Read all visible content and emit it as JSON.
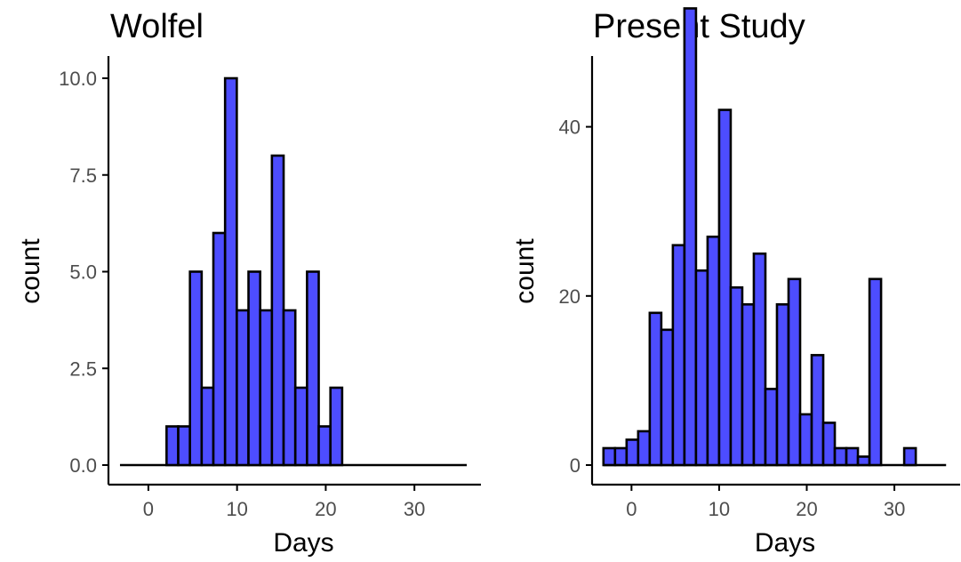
{
  "colors": {
    "bar_fill": "#4d4dff",
    "bar_outline": "#000000",
    "tick_text": "#4d4d4d"
  },
  "chart_data": [
    {
      "type": "bar",
      "title": "Wolfel",
      "xlabel": "Days",
      "ylabel": "count",
      "x_ticks": [
        0,
        10,
        20,
        30
      ],
      "y_ticks": [
        0,
        2.5,
        5,
        7.5,
        10
      ],
      "y_tick_labels": [
        "0.0",
        "2.5",
        "5.0",
        "7.5",
        "10.0"
      ],
      "xlim": [
        -4.5,
        37.5
      ],
      "ylim": [
        0,
        10.6
      ],
      "bin_width": 1.32,
      "bin_range": [
        -3.2,
        35.9
      ],
      "bin_starts": [
        2.05,
        3.37,
        4.69,
        6.01,
        7.33,
        8.65,
        9.97,
        11.29,
        12.61,
        13.93,
        15.25,
        16.57,
        17.89,
        19.21,
        20.53
      ],
      "values": [
        1,
        1,
        5,
        2,
        6,
        10,
        4,
        5,
        4,
        8,
        4,
        2,
        5,
        1,
        2
      ],
      "grid": false,
      "legend": "none"
    },
    {
      "type": "bar",
      "title": "Present Study",
      "xlabel": "Days",
      "ylabel": "count",
      "x_ticks": [
        0,
        10,
        20,
        30
      ],
      "y_ticks": [
        0,
        20,
        40
      ],
      "y_tick_labels": [
        "0",
        "20",
        "40"
      ],
      "xlim": [
        -4.5,
        37.5
      ],
      "ylim": [
        0,
        56
      ],
      "bin_width": 1.32,
      "bin_range": [
        -3.2,
        35.9
      ],
      "bin_starts": [
        -3.2,
        -1.88,
        -0.56,
        0.76,
        2.08,
        3.4,
        4.72,
        6.04,
        7.36,
        8.68,
        10.0,
        11.32,
        12.64,
        13.96,
        15.28,
        16.6,
        17.92,
        19.24,
        20.56,
        21.88,
        23.2,
        24.52,
        25.84,
        27.16,
        28.48,
        29.8,
        31.12
      ],
      "values": [
        2,
        2,
        3,
        4,
        18,
        16,
        26,
        54,
        23,
        27,
        42,
        21,
        19,
        25,
        9,
        19,
        22,
        6,
        13,
        5,
        2,
        2,
        1,
        22,
        0,
        0,
        2
      ],
      "grid": false,
      "legend": "none"
    }
  ]
}
